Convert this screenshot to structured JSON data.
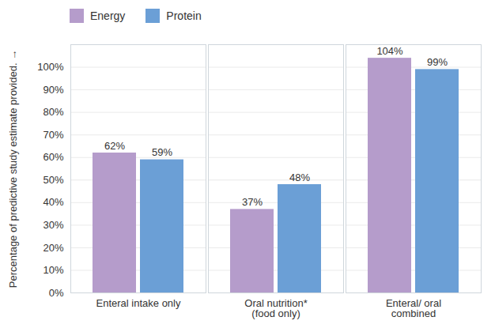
{
  "chart_data": {
    "type": "bar",
    "categories": [
      "Enteral intake only",
      "Oral nutrition*\n(food only)",
      "Enteral/ oral\ncombined"
    ],
    "series": [
      {
        "name": "Energy",
        "color": "#b59ccb",
        "values": [
          62,
          37,
          104
        ],
        "value_labels": [
          "62%",
          "37%",
          "104%"
        ]
      },
      {
        "name": "Protein",
        "color": "#6b9fd6",
        "values": [
          59,
          48,
          99
        ],
        "value_labels": [
          "59%",
          "48%",
          "99%"
        ]
      }
    ],
    "ylabel": "Percentage of predictive study estimate provided.",
    "ylim": [
      0,
      110
    ],
    "yticks": [
      {
        "value": 0,
        "label": "0%"
      },
      {
        "value": 10,
        "label": "10%"
      },
      {
        "value": 20,
        "label": "20%"
      },
      {
        "value": 30,
        "label": "30%"
      },
      {
        "value": 40,
        "label": "40%"
      },
      {
        "value": 50,
        "label": "50%"
      },
      {
        "value": 60,
        "label": "60%"
      },
      {
        "value": 70,
        "label": "70%"
      },
      {
        "value": 80,
        "label": "80%"
      },
      {
        "value": 90,
        "label": "90%"
      },
      {
        "value": 100,
        "label": "100%"
      }
    ],
    "grid": true,
    "legend": "top-left",
    "data_labels": true
  }
}
